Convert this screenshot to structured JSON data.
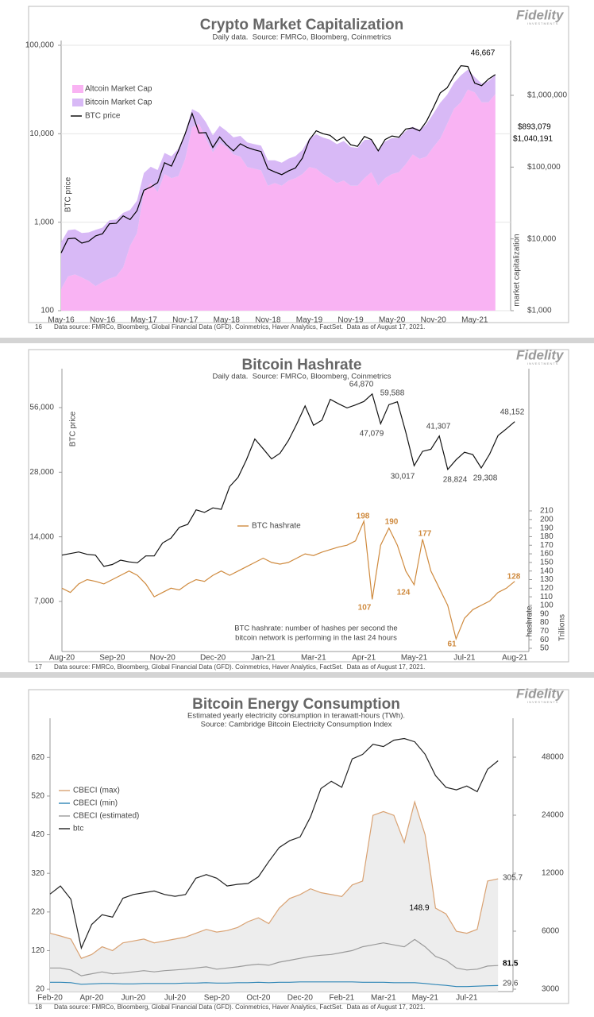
{
  "chart_data": [
    {
      "type": "line",
      "title": "Crypto Market Capitalization",
      "subtitle": [
        "Daily data.  Source: FMRCo, Bloomberg, Coinmetrics"
      ],
      "logo": "Fidelity",
      "logo_sub": "INVESTMENTS",
      "ylabel": "BTC price",
      "y2label": [
        "market capitalization"
      ],
      "ylog": true,
      "y2log": true,
      "stack": true,
      "grid": true,
      "ylim": [
        100,
        100000
      ],
      "yticks": [
        100,
        {
          "value": 1000,
          "label": "1,000"
        },
        {
          "value": 10000,
          "label": "10,000"
        },
        {
          "value": 100000,
          "label": "100,000"
        }
      ],
      "y2lim": [
        1000,
        4977000
      ],
      "y2ticks": [
        {
          "value": 1000,
          "label": "$1,000"
        },
        {
          "value": 10000,
          "label": "$10,000"
        },
        {
          "value": 100000,
          "label": "$100,000"
        },
        {
          "value": 1000000,
          "label": "$1,000,000"
        }
      ],
      "categories": [
        "May-16",
        null,
        null,
        null,
        null,
        null,
        "Nov-16",
        null,
        null,
        null,
        null,
        null,
        "May-17",
        null,
        null,
        null,
        null,
        null,
        "Nov-17",
        null,
        null,
        null,
        null,
        null,
        "May-18",
        null,
        null,
        null,
        null,
        null,
        "Nov-18",
        null,
        null,
        null,
        null,
        null,
        "May-19",
        null,
        null,
        null,
        null,
        null,
        "Nov-19",
        null,
        null,
        null,
        null,
        null,
        "May-20",
        null,
        null,
        null,
        null,
        null,
        "Nov-20",
        null,
        null,
        null,
        null,
        null,
        "May-21",
        null,
        null,
        null
      ],
      "series": [
        {
          "name": "Altcoin Market Cap",
          "type": "area",
          "axis": "y2",
          "color": "#f9b3f3",
          "values": [
            2000,
            3000,
            3200,
            2900,
            2600,
            2200,
            2500,
            2800,
            3000,
            4000,
            8000,
            12000,
            45000,
            60000,
            45000,
            80000,
            70000,
            75000,
            130000,
            360000,
            400000,
            250000,
            160000,
            220000,
            190000,
            150000,
            140000,
            100000,
            95000,
            90000,
            55000,
            60000,
            55000,
            65000,
            70000,
            80000,
            100000,
            95000,
            80000,
            70000,
            60000,
            65000,
            55000,
            55000,
            70000,
            85000,
            55000,
            70000,
            80000,
            85000,
            110000,
            150000,
            130000,
            140000,
            190000,
            250000,
            400000,
            650000,
            800000,
            1200000,
            1100000,
            800000,
            800000,
            1040191
          ]
        },
        {
          "name": "Bitcoin Market Cap",
          "type": "area",
          "axis": "y2",
          "color": "#d8b9f6",
          "values": [
            7020,
            10200,
            10400,
            9160,
            9700,
            11170,
            11840,
            15400,
            15600,
            19060,
            17330,
            22000,
            37600,
            41000,
            46060,
            77550,
            71170,
            106240,
            167000,
            284000,
            171400,
            173600,
            118300,
            155900,
            127900,
            109400,
            132100,
            120400,
            113900,
            109000,
            69400,
            64400,
            60200,
            66500,
            72200,
            93500,
            150500,
            191700,
            178000,
            171800,
            149000,
            165600,
            135400,
            130300,
            169300,
            156900,
            117100,
            157800,
            173900,
            168400,
            208500,
            215200,
            199400,
            255700,
            365600,
            538800,
            616300,
            840700,
            1097800,
            1079000,
            698300,
            655900,
            778500,
            893079
          ]
        },
        {
          "name": "BTC price",
          "type": "line",
          "color": "#000000",
          "values": [
            450,
            650,
            660,
            580,
            610,
            700,
            740,
            960,
            970,
            1180,
            1070,
            1350,
            2300,
            2500,
            2800,
            4700,
            4300,
            6400,
            10000,
            17000,
            10200,
            10300,
            7000,
            9200,
            7500,
            6400,
            7700,
            7000,
            6600,
            6300,
            4000,
            3700,
            3450,
            3800,
            4100,
            5300,
            8500,
            10800,
            10000,
            9600,
            8300,
            9200,
            7500,
            7200,
            9300,
            8600,
            6400,
            8600,
            9450,
            9140,
            11300,
            11650,
            10780,
            13800,
            19700,
            29000,
            33100,
            45100,
            58800,
            57700,
            37300,
            35000,
            41500,
            46667
          ]
        }
      ],
      "annotations": [
        "46,667",
        "$893,079",
        "$1,040,191"
      ],
      "page": "16",
      "source": "Data source: FMRCo, Bloomberg, Global Financial Data (GFD). Coinmetrics, Haver Analytics, FactSet.  Data as of August 17, 2021."
    },
    {
      "type": "line",
      "title": "Bitcoin Hashrate",
      "subtitle": [
        "Daily data.  Source: FMRCo, Bloomberg, Coinmetrics"
      ],
      "logo": "Fidelity",
      "logo_sub": "INVESTMENTS",
      "ylabel": "BTC price",
      "y2label": [
        "hashrate",
        "Trillions"
      ],
      "ylog": true,
      "y2log": false,
      "grid": false,
      "ylim": [
        4090,
        80800
      ],
      "yticks": [
        {
          "value": 7000,
          "label": "7,000"
        },
        {
          "value": 14000,
          "label": "14,000"
        },
        {
          "value": 28000,
          "label": "28,000"
        },
        {
          "value": 56000,
          "label": "56,000"
        }
      ],
      "y2lim": [
        46.3,
        370
      ],
      "y2ticks": [
        50,
        60,
        70,
        80,
        90,
        100,
        110,
        120,
        130,
        140,
        150,
        160,
        170,
        180,
        190,
        200,
        210
      ],
      "categories": [
        "Aug-20",
        null,
        null,
        null,
        null,
        null,
        "Sep-20",
        null,
        null,
        null,
        null,
        null,
        "Nov-20",
        null,
        null,
        null,
        null,
        null,
        "Dec-20",
        null,
        null,
        null,
        null,
        null,
        "Jan-21",
        null,
        null,
        null,
        null,
        null,
        "Mar-21",
        null,
        null,
        null,
        null,
        null,
        "Apr-21",
        null,
        null,
        null,
        null,
        null,
        "May-21",
        null,
        null,
        null,
        null,
        null,
        "Jul-21",
        null,
        null,
        null,
        null,
        null,
        "Aug-21"
      ],
      "series": [
        {
          "name": "BTC price",
          "type": "line",
          "color": "#111111",
          "nolegend": true,
          "values": [
            11500,
            11700,
            11900,
            11600,
            11500,
            10200,
            10400,
            10900,
            10700,
            10600,
            11400,
            11400,
            13100,
            13800,
            15500,
            16000,
            18700,
            18200,
            19100,
            18800,
            24000,
            26500,
            32000,
            40000,
            36000,
            32300,
            34300,
            39300,
            47000,
            57000,
            46300,
            48900,
            61200,
            58300,
            55800,
            57600,
            59800,
            64870,
            47079,
            57800,
            59588,
            43000,
            30017,
            35000,
            35800,
            41307,
            28824,
            32000,
            34700,
            33800,
            29308,
            34000,
            41500,
            44600,
            48152
          ]
        },
        {
          "name": "BTC hashrate",
          "type": "line",
          "axis": "y2",
          "color": "#cf8a3e",
          "values": [
            120,
            115,
            125,
            130,
            128,
            125,
            130,
            135,
            140,
            135,
            125,
            110,
            115,
            120,
            118,
            125,
            130,
            128,
            135,
            140,
            135,
            140,
            145,
            150,
            155,
            150,
            148,
            150,
            155,
            160,
            158,
            162,
            165,
            168,
            170,
            175,
            198,
            107,
            170,
            190,
            170,
            140,
            124,
            177,
            140,
            120,
            100,
            61,
            85,
            95,
            100,
            105,
            115,
            120,
            128
          ]
        }
      ],
      "annotations": [
        "64,870",
        "59,588",
        "47,079",
        "30,017",
        "41,307",
        "28,824",
        "29,308",
        "48,152",
        "198",
        "190",
        "177",
        "107",
        "124",
        "61",
        "128"
      ],
      "note": [
        "BTC hashrate: number of hashes per second the",
        "bitcoin network is performing in the last 24 hours"
      ],
      "page": "17",
      "source": "Data source: FMRCo, Bloomberg, Global Financial Data (GFD). Coinmetrics, Haver Analytics, FactSet.  Data as of August 17, 2021."
    },
    {
      "type": "line",
      "title": "Bitcoin Energy Consumption",
      "subtitle": [
        "Estimated yearly electricity consumption in terawatt-hours (TWh).",
        "Source: Cambridge Bitcoin Electricity Consumption Index"
      ],
      "logo": "Fidelity",
      "logo_sub": "INVESTMENTS",
      "ylog": false,
      "y2log": true,
      "grid": false,
      "ylim": [
        14,
        709
      ],
      "yticks": [
        20,
        120,
        220,
        320,
        420,
        520,
        620
      ],
      "y2lim": [
        2915,
        72200
      ],
      "y2ticks": [
        3000,
        6000,
        12000,
        24000,
        48000
      ],
      "categories": [
        "Feb-20",
        null,
        null,
        null,
        "Apr-20",
        null,
        null,
        null,
        "Jun-20",
        null,
        null,
        null,
        "Jul-20",
        null,
        null,
        null,
        "Sep-20",
        null,
        null,
        null,
        "Oct-20",
        null,
        null,
        null,
        "Dec-20",
        null,
        null,
        null,
        "Feb-21",
        null,
        null,
        null,
        "Mar-21",
        null,
        null,
        null,
        "May-21",
        null,
        null,
        null,
        "Jul-21",
        null,
        null,
        null
      ],
      "series": [
        {
          "name": "CBECI (max)",
          "type": "line",
          "color": "#d9a273",
          "fill": "#ededed",
          "values": [
            165,
            158,
            150,
            100,
            110,
            130,
            120,
            140,
            145,
            150,
            140,
            145,
            150,
            155,
            165,
            175,
            168,
            172,
            180,
            195,
            205,
            190,
            230,
            255,
            265,
            280,
            270,
            265,
            260,
            290,
            300,
            470,
            480,
            470,
            400,
            505,
            420,
            230,
            215,
            170,
            165,
            175,
            300,
            305.7
          ]
        },
        {
          "name": "CBECI (min)",
          "type": "line",
          "color": "#2f86b6",
          "values": [
            38,
            38,
            37,
            33,
            34,
            35,
            35,
            34,
            34,
            35,
            35,
            35,
            35,
            36,
            36,
            37,
            36,
            36,
            37,
            37,
            38,
            37,
            38,
            38,
            39,
            39,
            39,
            39,
            39,
            39,
            38,
            38,
            38,
            37,
            37,
            37,
            35,
            32,
            30,
            27,
            27,
            28,
            29,
            29.6
          ]
        },
        {
          "name": "CBECI (estimated)",
          "type": "line",
          "color": "#9a9a9a",
          "values": [
            75,
            75,
            70,
            55,
            60,
            65,
            60,
            62,
            65,
            68,
            65,
            68,
            70,
            72,
            75,
            78,
            72,
            75,
            78,
            82,
            85,
            82,
            90,
            95,
            100,
            105,
            108,
            110,
            115,
            120,
            130,
            135,
            140,
            135,
            130,
            148.9,
            130,
            105,
            95,
            75,
            70,
            72,
            80,
            81.5
          ]
        },
        {
          "name": "btc",
          "type": "line",
          "axis": "y2",
          "color": "#222222",
          "values": [
            9350,
            10300,
            8800,
            4900,
            6500,
            7300,
            7100,
            8900,
            9300,
            9500,
            9700,
            9300,
            9100,
            9300,
            11300,
            11800,
            11300,
            10300,
            10500,
            10600,
            11500,
            13800,
            16300,
            17700,
            18500,
            23500,
            33000,
            36000,
            33500,
            47000,
            49600,
            56000,
            54500,
            58800,
            60000,
            57700,
            49700,
            38500,
            33500,
            32500,
            34000,
            31800,
            41500,
            46000
          ]
        }
      ],
      "annotations": [
        "305.7",
        "148.9",
        "81.5",
        "29.6"
      ],
      "page": "18",
      "source": "Data source: FMRCo, Bloomberg, Global Financial Data (GFD). Coinmetrics, Haver Analytics, FactSet.  Data as of August 17, 2021."
    }
  ]
}
